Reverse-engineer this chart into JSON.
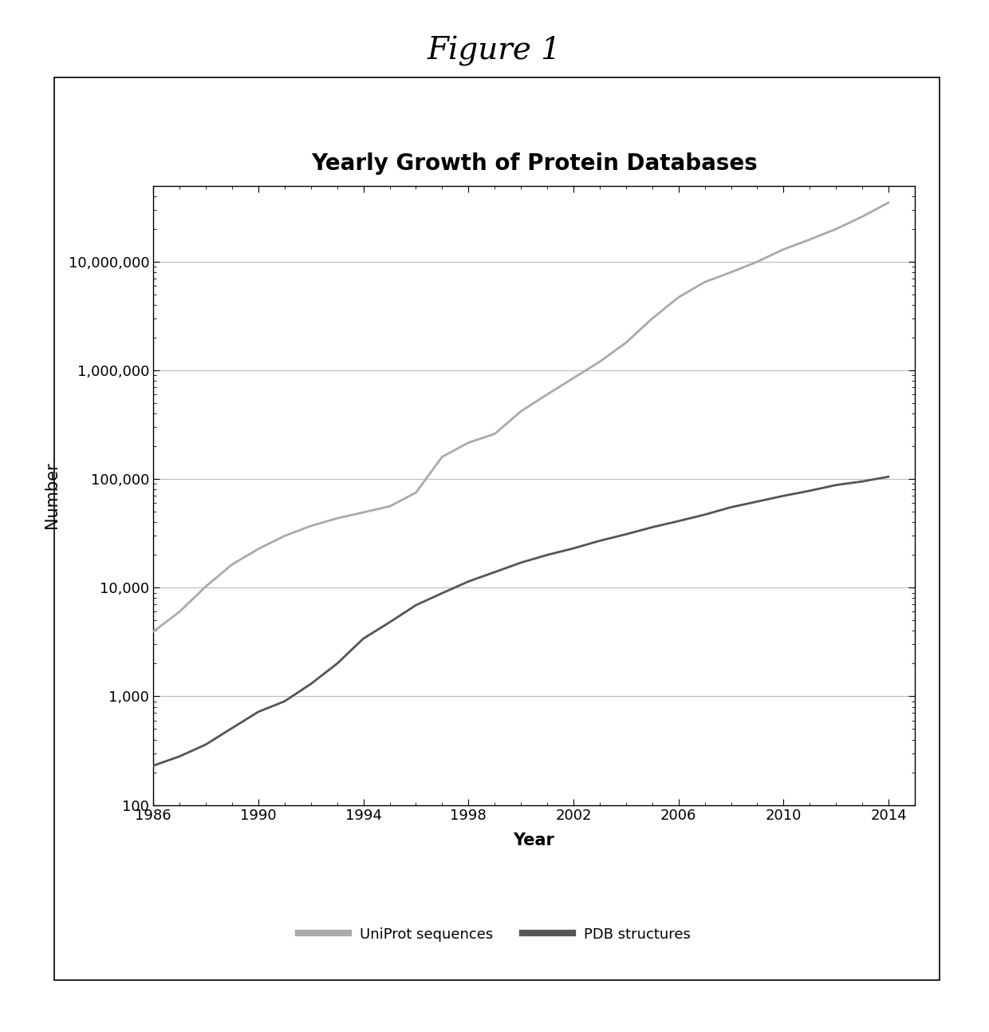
{
  "title": "Yearly Growth of Protein Databases",
  "figure_title": "Figure 1",
  "xlabel": "Year",
  "ylabel": "Number",
  "xlim": [
    1986,
    2015
  ],
  "ylim_log": [
    100,
    50000000
  ],
  "xticks": [
    1986,
    1990,
    1994,
    1998,
    2002,
    2006,
    2010,
    2014
  ],
  "yticks": [
    100,
    1000,
    10000,
    100000,
    1000000,
    10000000
  ],
  "ytick_labels": [
    "100",
    "1,000",
    "10,000",
    "100,000",
    "1,000,000",
    "10,000,000"
  ],
  "uniprot_years": [
    1986,
    1987,
    1988,
    1989,
    1990,
    1991,
    1992,
    1993,
    1994,
    1995,
    1996,
    1997,
    1998,
    1999,
    2000,
    2001,
    2002,
    2003,
    2004,
    2005,
    2006,
    2007,
    2008,
    2009,
    2010,
    2011,
    2012,
    2013,
    2014
  ],
  "uniprot_values": [
    3939,
    6008,
    10265,
    16341,
    22725,
    29955,
    37000,
    43470,
    49340,
    56000,
    75000,
    160000,
    216000,
    260000,
    420000,
    600000,
    850000,
    1200000,
    1800000,
    3000000,
    4700000,
    6500000,
    8000000,
    10000000,
    13000000,
    16000000,
    20000000,
    26000000,
    35000000
  ],
  "pdb_years": [
    1986,
    1987,
    1988,
    1989,
    1990,
    1991,
    1992,
    1993,
    1994,
    1995,
    1996,
    1997,
    1998,
    1999,
    2000,
    2001,
    2002,
    2003,
    2004,
    2005,
    2006,
    2007,
    2008,
    2009,
    2010,
    2011,
    2012,
    2013,
    2014
  ],
  "pdb_values": [
    230,
    280,
    360,
    510,
    720,
    900,
    1300,
    2000,
    3400,
    4800,
    6900,
    8900,
    11400,
    13900,
    17000,
    20000,
    23000,
    27000,
    31000,
    36000,
    41000,
    47000,
    55000,
    62000,
    70000,
    78000,
    88000,
    95000,
    105000
  ],
  "line_color_uniprot": "#aaaaaa",
  "line_color_pdb": "#555555",
  "line_width": 2.0,
  "chart_title_fontsize": 20,
  "axis_label_fontsize": 15,
  "tick_fontsize": 13,
  "legend_fontsize": 13,
  "figure_title_fontsize": 28,
  "background_color": "#ffffff"
}
